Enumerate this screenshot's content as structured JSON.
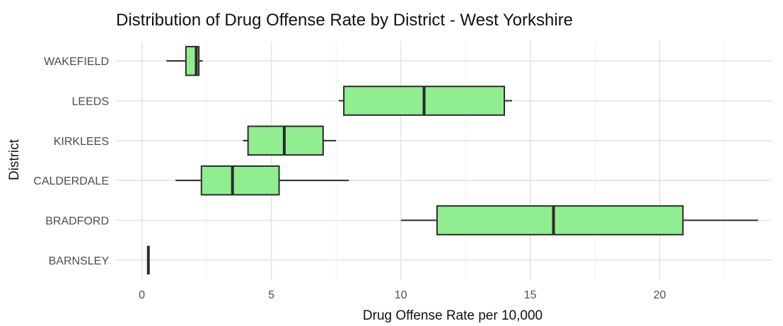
{
  "chart_data": {
    "type": "boxplot",
    "orientation": "horizontal",
    "title": "Distribution of Drug Offense Rate by District - West Yorkshire",
    "xlabel": "Drug Offense Rate per 10,000",
    "ylabel": "District",
    "xlim": [
      -1.0,
      24.3
    ],
    "x_ticks": [
      0,
      5,
      10,
      15,
      20
    ],
    "x_tick_labels": [
      "0",
      "5",
      "10",
      "15",
      "20"
    ],
    "grid": true,
    "legend": "none",
    "fill_color": "#90EE90",
    "categories": [
      "BARNSLEY",
      "BRADFORD",
      "CALDERDALE",
      "KIRKLEES",
      "LEEDS",
      "WAKEFIELD"
    ],
    "boxes": [
      {
        "category": "BARNSLEY",
        "min": 0.25,
        "q1": 0.25,
        "median": 0.25,
        "q3": 0.25,
        "max": 0.25
      },
      {
        "category": "BRADFORD",
        "min": 10.0,
        "q1": 11.4,
        "median": 15.9,
        "q3": 20.9,
        "max": 23.8
      },
      {
        "category": "CALDERDALE",
        "min": 1.3,
        "q1": 2.3,
        "median": 3.5,
        "q3": 5.3,
        "max": 8.0
      },
      {
        "category": "KIRKLEES",
        "min": 3.9,
        "q1": 4.1,
        "median": 5.5,
        "q3": 7.0,
        "max": 7.5
      },
      {
        "category": "LEEDS",
        "min": 7.6,
        "q1": 7.8,
        "median": 10.9,
        "q3": 14.0,
        "max": 14.3
      },
      {
        "category": "WAKEFIELD",
        "min": 0.95,
        "q1": 1.7,
        "median": 2.1,
        "q3": 2.2,
        "max": 2.35
      }
    ]
  }
}
